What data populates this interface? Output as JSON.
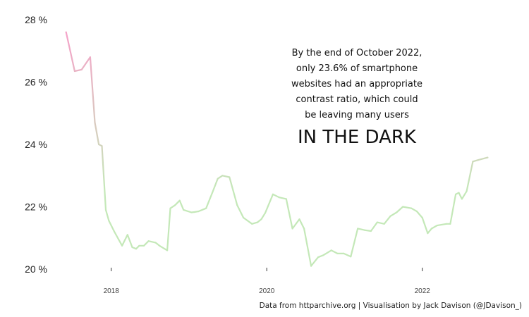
{
  "chart_data": {
    "type": "line",
    "title": "",
    "xlabel": "",
    "ylabel": "",
    "ylim": [
      20,
      28
    ],
    "y_ticks": [
      {
        "value": 28,
        "label": "28 %"
      },
      {
        "value": 26,
        "label": "26 %"
      },
      {
        "value": 24,
        "label": "24 %"
      },
      {
        "value": 22,
        "label": "22 %"
      },
      {
        "value": 20,
        "label": "20 %"
      }
    ],
    "x_ticks": [
      {
        "value": 2018,
        "label": "2018"
      },
      {
        "value": 2020,
        "label": "2020"
      },
      {
        "value": 2022,
        "label": "2022"
      }
    ],
    "grid": false,
    "legend": "none",
    "color_gradient": {
      "high": "#f4a3c8",
      "low": "#c4e8b8",
      "high_value": 27.5,
      "low_value": 22.5
    },
    "series": [
      {
        "x": [
          2017.42,
          2017.53,
          2017.62,
          2017.73,
          2017.79,
          2017.84,
          2017.88,
          2017.93,
          2017.97,
          2018.04,
          2018.14,
          2018.21,
          2018.27,
          2018.32,
          2018.36,
          2018.42,
          2018.48,
          2018.57,
          2018.62,
          2018.72,
          2018.76,
          2018.82,
          2018.88,
          2018.93,
          2019.03,
          2019.07,
          2019.12,
          2019.22,
          2019.3,
          2019.37,
          2019.43,
          2019.52,
          2019.62,
          2019.7,
          2019.81,
          2019.88,
          2019.93,
          2019.98,
          2020.08,
          2020.16,
          2020.25,
          2020.33,
          2020.42,
          2020.48,
          2020.57,
          2020.66,
          2020.73,
          2020.83,
          2020.91,
          2020.99,
          2021.08,
          2021.17,
          2021.26,
          2021.34,
          2021.42,
          2021.51,
          2021.59,
          2021.67,
          2021.75,
          2021.86,
          2021.93,
          2022.0,
          2022.07,
          2022.12,
          2022.19,
          2022.31,
          2022.36,
          2022.43,
          2022.47,
          2022.51,
          2022.57,
          2022.65,
          2022.72,
          2022.84
        ],
        "values": [
          27.6,
          26.35,
          26.4,
          26.8,
          24.7,
          24.0,
          23.95,
          21.9,
          21.55,
          21.2,
          20.75,
          21.1,
          20.7,
          20.65,
          20.75,
          20.75,
          20.9,
          20.85,
          20.75,
          20.6,
          21.95,
          22.05,
          22.2,
          21.9,
          21.82,
          21.83,
          21.85,
          21.95,
          22.45,
          22.9,
          23.0,
          22.95,
          22.05,
          21.65,
          21.45,
          21.5,
          21.6,
          21.8,
          22.4,
          22.3,
          22.25,
          21.3,
          21.6,
          21.3,
          20.1,
          20.38,
          20.45,
          20.6,
          20.5,
          20.5,
          20.4,
          21.3,
          21.25,
          21.22,
          21.5,
          21.45,
          21.7,
          21.82,
          22.0,
          21.95,
          21.85,
          21.65,
          21.15,
          21.3,
          21.4,
          21.45,
          21.45,
          22.4,
          22.45,
          22.25,
          22.5,
          23.45,
          23.5,
          23.58
        ]
      }
    ]
  },
  "annotation": {
    "lines": [
      "By the end of October 2022,",
      "only 23.6% of smartphone",
      "websites had an appropriate",
      "contrast ratio, which could",
      "be leaving many users"
    ],
    "headline": "IN THE DARK"
  },
  "caption": "Data from httparchive.org | Visualisation by Jack Davison (@JDavison_)"
}
